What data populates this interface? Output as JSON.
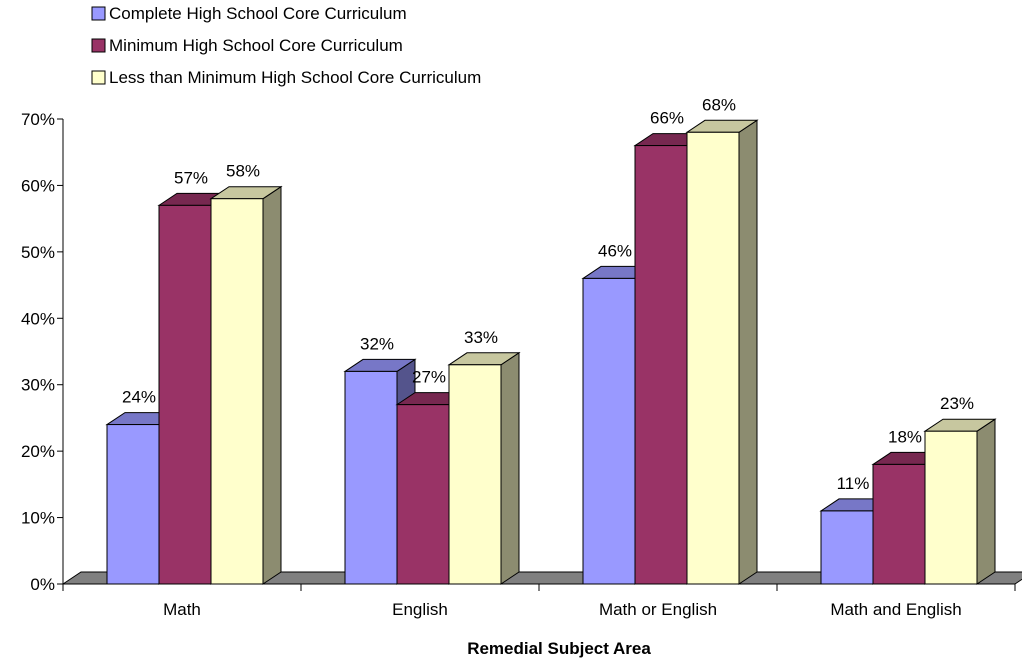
{
  "chart_data": {
    "type": "bar",
    "title": "",
    "xlabel": "Remedial Subject Area",
    "ylabel": "",
    "categories": [
      "Math",
      "English",
      "Math or English",
      "Math and English"
    ],
    "series": [
      {
        "name": "Complete High School Core Curriculum",
        "values": [
          24,
          32,
          46,
          11
        ],
        "color": "#9999ff"
      },
      {
        "name": "Minimum High School Core Curriculum",
        "values": [
          57,
          27,
          66,
          18
        ],
        "color": "#993366"
      },
      {
        "name": "Less than Minimum High School Core Curriculum",
        "values": [
          58,
          33,
          68,
          23
        ],
        "color": "#ffffcc"
      }
    ],
    "ylim": [
      0,
      70
    ],
    "ytick_values": [
      0,
      10,
      20,
      30,
      40,
      50,
      60,
      70
    ],
    "ytick_labels": [
      "0%",
      "10%",
      "20%",
      "30%",
      "40%",
      "50%",
      "60%",
      "70%"
    ],
    "data_labels": [
      [
        "24%",
        "32%",
        "46%",
        "11%"
      ],
      [
        "57%",
        "27%",
        "66%",
        "18%"
      ],
      [
        "58%",
        "33%",
        "68%",
        "23%"
      ]
    ],
    "legend_position": "top-left",
    "grid": false,
    "three_d": true
  }
}
